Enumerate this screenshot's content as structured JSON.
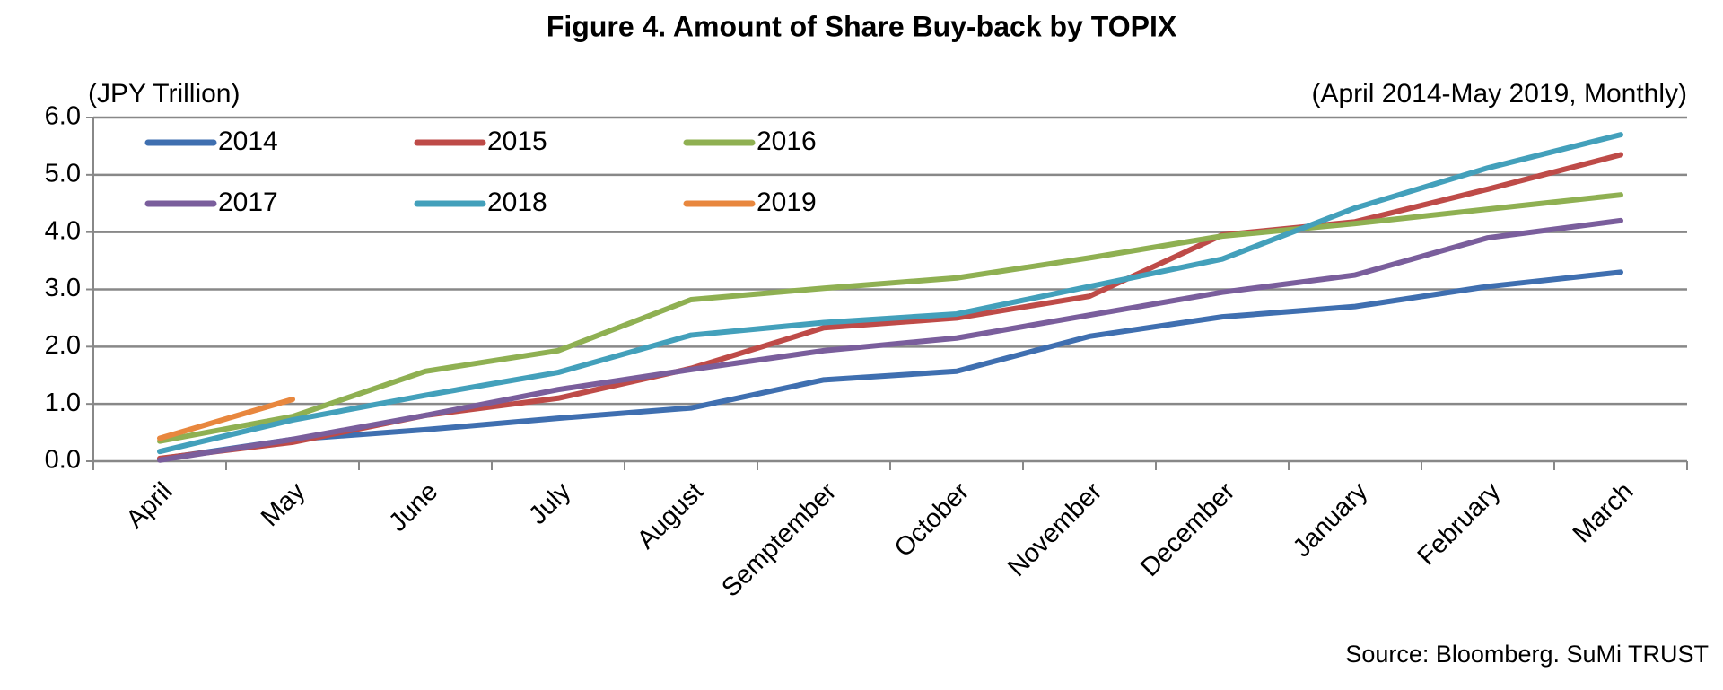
{
  "chart_data": {
    "type": "line",
    "title": "Figure 4. Amount of Share Buy-back by TOPIX",
    "y_label": "(JPY Trillion)",
    "subtitle": "(April 2014-May 2019, Monthly)",
    "source": "Source: Bloomberg. SuMi TRUST",
    "categories": [
      "April",
      "May",
      "June",
      "July",
      "August",
      "Semptember",
      "October",
      "November",
      "December",
      "January",
      "February",
      "March"
    ],
    "ylim": [
      0,
      6
    ],
    "yticks": [
      {
        "value": 0,
        "label": "0.0"
      },
      {
        "value": 1,
        "label": "1.0"
      },
      {
        "value": 2,
        "label": "2.0"
      },
      {
        "value": 3,
        "label": "3.0"
      },
      {
        "value": 4,
        "label": "4.0"
      },
      {
        "value": 5,
        "label": "5.0"
      },
      {
        "value": 6,
        "label": "6.0"
      }
    ],
    "grid": true,
    "series": [
      {
        "name": "2014",
        "color": "#3f6fb0",
        "values": [
          0.04,
          0.38,
          0.55,
          0.75,
          0.93,
          1.42,
          1.57,
          2.18,
          2.52,
          2.7,
          3.05,
          3.3
        ]
      },
      {
        "name": "2015",
        "color": "#be4b48",
        "values": [
          0.05,
          0.33,
          0.8,
          1.1,
          1.62,
          2.33,
          2.5,
          2.88,
          3.95,
          4.18,
          4.75,
          5.35
        ]
      },
      {
        "name": "2016",
        "color": "#8fb052",
        "values": [
          0.35,
          0.78,
          1.57,
          1.93,
          2.82,
          3.02,
          3.2,
          3.55,
          3.93,
          4.15,
          4.4,
          4.65
        ]
      },
      {
        "name": "2017",
        "color": "#7a5e9c",
        "values": [
          0.02,
          0.38,
          0.8,
          1.25,
          1.6,
          1.93,
          2.15,
          2.55,
          2.95,
          3.25,
          3.9,
          4.2
        ]
      },
      {
        "name": "2018",
        "color": "#43a0bb",
        "values": [
          0.17,
          0.72,
          1.15,
          1.55,
          2.2,
          2.42,
          2.57,
          3.05,
          3.53,
          4.42,
          5.12,
          5.7
        ]
      },
      {
        "name": "2019",
        "color": "#e8873e",
        "values": [
          0.4,
          1.08,
          null,
          null,
          null,
          null,
          null,
          null,
          null,
          null,
          null,
          null
        ]
      }
    ]
  }
}
